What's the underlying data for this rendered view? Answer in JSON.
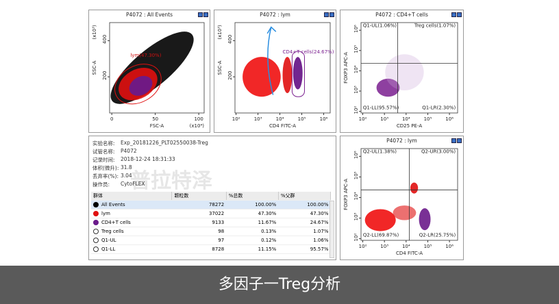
{
  "plots": [
    {
      "title": "P4072 : All Events",
      "x_label": "FSC-A",
      "y_label": "SSC-A",
      "x_unit": "(x10⁴)",
      "y_unit": "(x10³)",
      "x_ticks": [
        "0",
        "50",
        "100"
      ],
      "y_ticks": [
        "200",
        "400"
      ],
      "labels": [
        "lym(47.30%)"
      ]
    },
    {
      "title": "P4072 : lym",
      "x_label": "CD4 FITC-A",
      "y_label": "SSC-A",
      "x_unit": "",
      "y_unit": "(x10³)",
      "x_ticks": [
        "10²",
        "10³",
        "10⁴",
        "10⁵",
        "10⁶"
      ],
      "y_ticks": [
        "200",
        "400"
      ],
      "labels": [
        "CD4+T cells(24.67%)"
      ]
    },
    {
      "title": "P4072 : CD4+T cells",
      "x_label": "CD25 PE-A",
      "y_label": "FOXP3 APC-A",
      "x_unit": "",
      "y_unit": "",
      "x_ticks": [
        "10²",
        "10³",
        "10⁴",
        "10⁵",
        "10⁶"
      ],
      "y_ticks": [
        "10²",
        "10³",
        "10⁴",
        "10⁵",
        "10⁶"
      ],
      "labels": [
        "Q1-UL(1.06%)",
        "Treg cells(1.07%)",
        "Q1-LL(95.57%)",
        "Q1-LR(2.30%)"
      ]
    },
    {
      "title": "P4072 : lym",
      "x_label": "CD4 FITC-A",
      "y_label": "FOXP3 APC-A",
      "x_unit": "",
      "y_unit": "",
      "x_ticks": [
        "10²",
        "10³",
        "10⁴",
        "10⁵",
        "10⁶"
      ],
      "y_ticks": [
        "10²",
        "10³",
        "10⁴",
        "10⁵",
        "10⁶"
      ],
      "labels": [
        "Q2-UL(1.38%)",
        "Q2-UR(3.00%)",
        "Q2-LL(69.87%)",
        "Q2-LR(25.75%)"
      ]
    }
  ],
  "info": {
    "fields": [
      {
        "label": "实验名称:",
        "value": "Exp_20181226_PLT02550038-Treg"
      },
      {
        "label": "试管名称:",
        "value": "P4072"
      },
      {
        "label": "记录时间:",
        "value": "2018-12-24 18:31:33"
      },
      {
        "label": "体积(微升):",
        "value": "31.8"
      },
      {
        "label": "丢弃率(%):",
        "value": "3.04"
      },
      {
        "label": "操作员:",
        "value": "CytoFLEX"
      }
    ],
    "watermark": "普拉特泽"
  },
  "table": {
    "header": [
      "群体",
      "颗粒数",
      "%总数",
      "%父群"
    ],
    "rows": [
      [
        "All Events",
        "78272",
        "100.00%",
        "100.00%"
      ],
      [
        "lym",
        "37022",
        "47.30%",
        "47.30%"
      ],
      [
        "CD4+T cells",
        "9133",
        "11.67%",
        "24.67%"
      ],
      [
        "Treg cells",
        "98",
        "0.13%",
        "1.07%"
      ],
      [
        "Q1-UL",
        "97",
        "0.12%",
        "1.06%"
      ],
      [
        "Q1-LL",
        "8728",
        "11.15%",
        "95.57%"
      ]
    ]
  },
  "caption": "多因子一Treg分析"
}
